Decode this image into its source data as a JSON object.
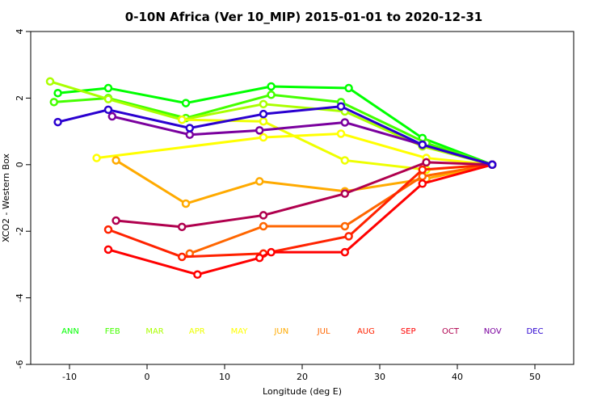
{
  "chart_data": {
    "type": "line",
    "title": "0-10N Africa (Ver 10_MIP)   2015-01-01 to 2020-12-31",
    "xlabel": "Longitude (deg E)",
    "ylabel": "XCO2 - Western Box",
    "xlim": [
      -15,
      55
    ],
    "ylim": [
      -6,
      4
    ],
    "xticks": [
      -10,
      0,
      10,
      20,
      30,
      40,
      50
    ],
    "yticks": [
      -6,
      -4,
      -2,
      0,
      2,
      4
    ],
    "series": [
      {
        "name": "ANN",
        "color": "#00ff00",
        "x": [
          -11.5,
          -5,
          5,
          16,
          26,
          35.5,
          44.5
        ],
        "y": [
          2.15,
          2.3,
          1.85,
          2.35,
          2.3,
          0.8,
          0.0
        ]
      },
      {
        "name": "FEB",
        "color": "#44ff00",
        "x": [
          -12,
          -5,
          5,
          16,
          25,
          36,
          44.5
        ],
        "y": [
          1.88,
          2.0,
          1.4,
          2.1,
          1.88,
          0.65,
          0.0
        ]
      },
      {
        "name": "MAR",
        "color": "#aaff00",
        "x": [
          -12.5,
          -5,
          4.5,
          15,
          25.5,
          35.5,
          44.5
        ],
        "y": [
          2.5,
          1.97,
          1.35,
          1.82,
          1.6,
          0.55,
          0.0
        ]
      },
      {
        "name": "APR",
        "color": "#eeff00",
        "x": [
          4.5,
          15,
          25.5,
          36,
          44.5
        ],
        "y": [
          1.35,
          1.3,
          0.13,
          -0.15,
          0.0
        ]
      },
      {
        "name": "MAY",
        "color": "#ffff00",
        "x": [
          -6.5,
          15,
          25,
          36,
          44.5
        ],
        "y": [
          0.2,
          0.82,
          0.93,
          0.2,
          0.0
        ]
      },
      {
        "name": "JUN",
        "color": "#ffaa00",
        "x": [
          -4,
          5,
          14.5,
          25.5,
          36,
          44.5
        ],
        "y": [
          0.13,
          -1.17,
          -0.5,
          -0.8,
          -0.42,
          0.0
        ]
      },
      {
        "name": "JUL",
        "color": "#ff6600",
        "x": [
          5.5,
          15,
          25.5,
          35.5,
          44.5
        ],
        "y": [
          -2.67,
          -1.85,
          -1.85,
          -0.35,
          0.0
        ]
      },
      {
        "name": "AUG",
        "color": "#ff2200",
        "x": [
          -5,
          4.5,
          15,
          26,
          35.5,
          44.5
        ],
        "y": [
          -1.95,
          -2.77,
          -2.67,
          -2.15,
          -0.15,
          0.0
        ]
      },
      {
        "name": "SEP",
        "color": "#ff0000",
        "x": [
          -5,
          6.5,
          14.5,
          16,
          25.5,
          35.5,
          44.5
        ],
        "y": [
          -2.55,
          -3.3,
          -2.8,
          -2.63,
          -2.63,
          -0.57,
          0.0
        ]
      },
      {
        "name": "OCT",
        "color": "#b0004e",
        "x": [
          -4,
          4.5,
          15,
          25.5,
          36,
          44.5
        ],
        "y": [
          -1.68,
          -1.87,
          -1.52,
          -0.87,
          0.07,
          0.0
        ]
      },
      {
        "name": "NOV",
        "color": "#7a009e",
        "x": [
          -4.5,
          5.5,
          14.5,
          25.5,
          35.5,
          44.5
        ],
        "y": [
          1.45,
          0.9,
          1.03,
          1.27,
          0.6,
          0.0
        ]
      },
      {
        "name": "DEC",
        "color": "#2a00d0",
        "x": [
          -11.5,
          -5,
          5.5,
          15,
          25,
          35.5,
          44.5
        ],
        "y": [
          1.28,
          1.65,
          1.1,
          1.52,
          1.75,
          0.6,
          0.0
        ]
      }
    ]
  }
}
